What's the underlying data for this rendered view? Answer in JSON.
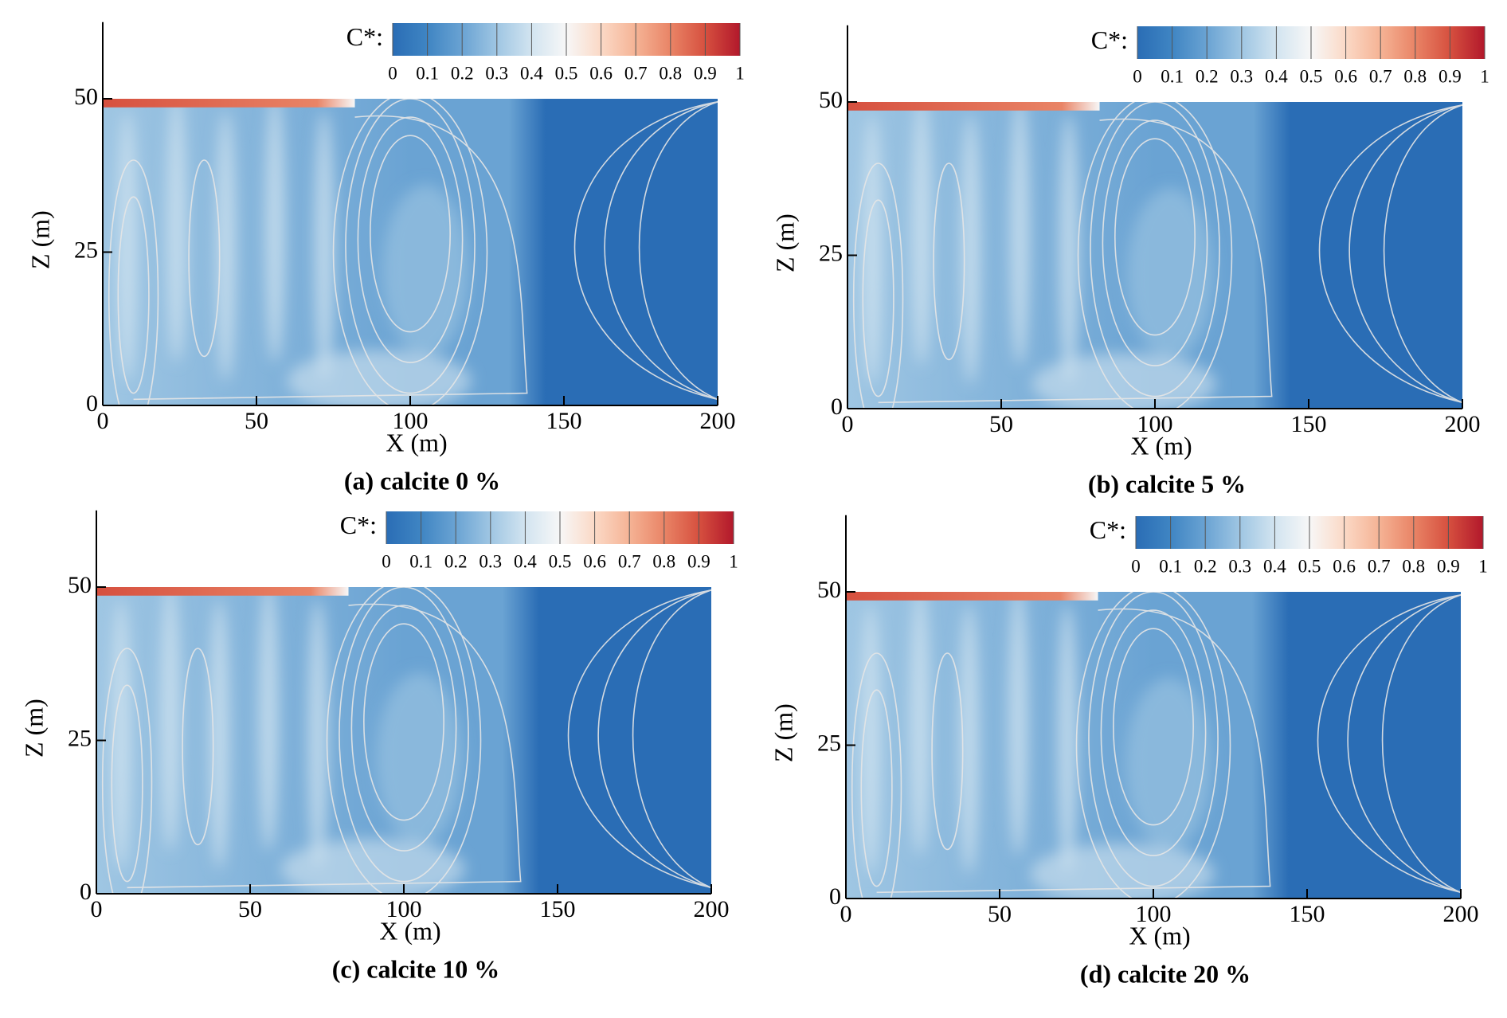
{
  "chart_data": [
    {
      "type": "contour",
      "title": "(a) calcite 0 %",
      "x_label": "X (m)",
      "y_label": "Z (m)",
      "xlim": [
        0,
        200
      ],
      "ylim": [
        0,
        62.5
      ],
      "xticks": [
        0,
        50,
        100,
        150,
        200
      ],
      "yticks": [
        0,
        25,
        50
      ],
      "colorbar": {
        "label": "C*:",
        "clim": [
          0,
          1
        ],
        "ticks": [
          0,
          0.1,
          0.2,
          0.3,
          0.4,
          0.5,
          0.6,
          0.7,
          0.8,
          0.9,
          1
        ],
        "colors": [
          "#2a6db5",
          "#3f85c3",
          "#6aa3d3",
          "#9fc6e3",
          "#d2e4f0",
          "#f7f7f7",
          "#fbd9c6",
          "#f5b395",
          "#e98466",
          "#d6503f",
          "#b2182b"
        ]
      }
    },
    {
      "type": "contour",
      "title": "(b) calcite 5 %",
      "x_label": "X (m)",
      "y_label": "Z (m)",
      "xlim": [
        0,
        200
      ],
      "ylim": [
        0,
        62.5
      ],
      "xticks": [
        0,
        50,
        100,
        150,
        200
      ],
      "yticks": [
        0,
        25,
        50
      ],
      "colorbar": {
        "label": "C*:",
        "clim": [
          0,
          1
        ],
        "ticks": [
          0,
          0.1,
          0.2,
          0.3,
          0.4,
          0.5,
          0.6,
          0.7,
          0.8,
          0.9,
          1
        ],
        "colors": [
          "#2a6db5",
          "#3f85c3",
          "#6aa3d3",
          "#9fc6e3",
          "#d2e4f0",
          "#f7f7f7",
          "#fbd9c6",
          "#f5b395",
          "#e98466",
          "#d6503f",
          "#b2182b"
        ]
      }
    },
    {
      "type": "contour",
      "title": "(c) calcite 10 %",
      "x_label": "X (m)",
      "y_label": "Z (m)",
      "xlim": [
        0,
        200
      ],
      "ylim": [
        0,
        62.5
      ],
      "xticks": [
        0,
        50,
        100,
        150,
        200
      ],
      "yticks": [
        0,
        25,
        50
      ],
      "colorbar": {
        "label": "C*:",
        "clim": [
          0,
          1
        ],
        "ticks": [
          0,
          0.1,
          0.2,
          0.3,
          0.4,
          0.5,
          0.6,
          0.7,
          0.8,
          0.9,
          1
        ],
        "colors": [
          "#2a6db5",
          "#3f85c3",
          "#6aa3d3",
          "#9fc6e3",
          "#d2e4f0",
          "#f7f7f7",
          "#fbd9c6",
          "#f5b395",
          "#e98466",
          "#d6503f",
          "#b2182b"
        ]
      }
    },
    {
      "type": "contour",
      "title": "(d) calcite 20 %",
      "x_label": "X (m)",
      "y_label": "Z (m)",
      "xlim": [
        0,
        200
      ],
      "ylim": [
        0,
        62.5
      ],
      "xticks": [
        0,
        50,
        100,
        150,
        200
      ],
      "yticks": [
        0,
        25,
        50
      ],
      "colorbar": {
        "label": "C*:",
        "clim": [
          0,
          1
        ],
        "ticks": [
          0,
          0.1,
          0.2,
          0.3,
          0.4,
          0.5,
          0.6,
          0.7,
          0.8,
          0.9,
          1
        ],
        "colors": [
          "#2a6db5",
          "#3f85c3",
          "#6aa3d3",
          "#9fc6e3",
          "#d2e4f0",
          "#f7f7f7",
          "#fbd9c6",
          "#f5b395",
          "#e98466",
          "#d6503f",
          "#b2182b"
        ]
      }
    }
  ]
}
